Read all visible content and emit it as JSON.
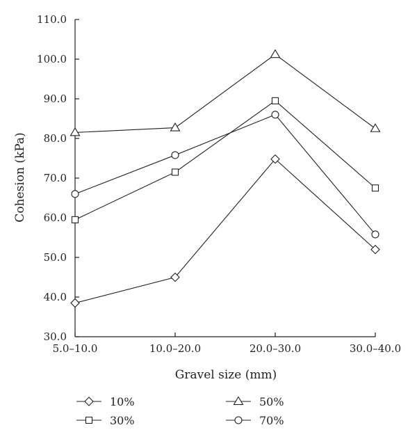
{
  "chart_data": {
    "type": "line",
    "title": "",
    "xlabel": "Gravel size (mm)",
    "ylabel": "Cohesion (kPa)",
    "categories": [
      "5.0–10.0",
      "10.0–20.0",
      "20.0–30.0",
      "30.0–40.0"
    ],
    "ylim": [
      30.0,
      110.0
    ],
    "yticks": [
      "30.0",
      "40.0",
      "50.0",
      "60.0",
      "70.0",
      "80.0",
      "90.0",
      "100.0",
      "110.0"
    ],
    "grid": false,
    "legend_position": "bottom",
    "series": [
      {
        "name": "10%",
        "marker": "diamond",
        "values": [
          38.5,
          45.0,
          74.8,
          52.0
        ]
      },
      {
        "name": "30%",
        "marker": "square",
        "values": [
          59.5,
          71.5,
          89.5,
          67.5
        ]
      },
      {
        "name": "50%",
        "marker": "triangle",
        "values": [
          81.5,
          82.7,
          101.2,
          82.5
        ]
      },
      {
        "name": "70%",
        "marker": "circle",
        "values": [
          66.0,
          75.8,
          86.0,
          55.8
        ]
      }
    ],
    "colors": {
      "ink": "#231f20",
      "marker_fill": "#ffffff"
    }
  }
}
